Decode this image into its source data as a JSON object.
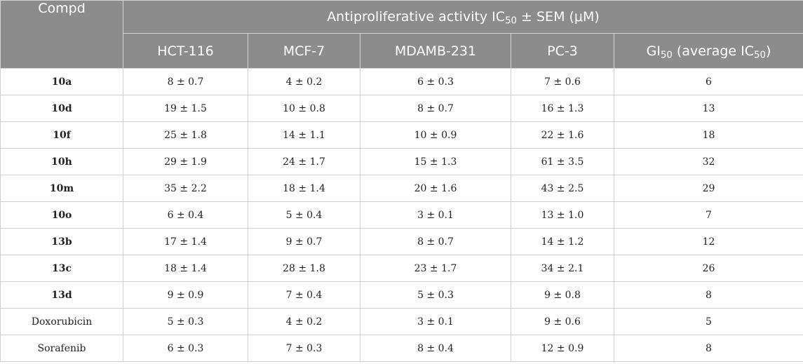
{
  "header": {
    "compd_label": "Compd",
    "activity_prefix": "Antiproliferative activity IC",
    "activity_sub": "50",
    "activity_suffix": " ± SEM (μM)",
    "columns": [
      "HCT-116",
      "MCF-7",
      "MDAMB-231",
      "PC-3"
    ],
    "gi_prefix": "GI",
    "gi_sub": "50",
    "gi_middle": " (average IC",
    "gi_sub2": "50",
    "gi_suffix": ")"
  },
  "rows": [
    {
      "compd": "10a",
      "bold": true,
      "hct": "8 ± 0.7",
      "mcf": "4 ± 0.2",
      "mdamb": "6 ± 0.3",
      "pc3": "7 ± 0.6",
      "gi": "6"
    },
    {
      "compd": "10d",
      "bold": true,
      "hct": "19 ± 1.5",
      "mcf": "10 ± 0.8",
      "mdamb": "8 ± 0.7",
      "pc3": "16 ± 1.3",
      "gi": "13"
    },
    {
      "compd": "10f",
      "bold": true,
      "hct": "25 ± 1.8",
      "mcf": "14 ± 1.1",
      "mdamb": "10 ± 0.9",
      "pc3": "22 ± 1.6",
      "gi": "18"
    },
    {
      "compd": "10h",
      "bold": true,
      "hct": "29 ± 1.9",
      "mcf": "24 ± 1.7",
      "mdamb": "15 ± 1.3",
      "pc3": "61 ± 3.5",
      "gi": "32"
    },
    {
      "compd": "10m",
      "bold": true,
      "hct": "35 ± 2.2",
      "mcf": "18 ± 1.4",
      "mdamb": "20 ± 1.6",
      "pc3": "43 ± 2.5",
      "gi": "29"
    },
    {
      "compd": "10o",
      "bold": true,
      "hct": "6 ± 0.4",
      "mcf": "5 ± 0.4",
      "mdamb": "3 ± 0.1",
      "pc3": "13 ± 1.0",
      "gi": "7"
    },
    {
      "compd": "13b",
      "bold": true,
      "hct": "17 ± 1.4",
      "mcf": "9 ± 0.7",
      "mdamb": "8 ± 0.7",
      "pc3": "14 ± 1.2",
      "gi": "12"
    },
    {
      "compd": "13c",
      "bold": true,
      "hct": "18 ± 1.4",
      "mcf": "28 ± 1.8",
      "mdamb": "23 ± 1.7",
      "pc3": "34 ± 2.1",
      "gi": "26"
    },
    {
      "compd": "13d",
      "bold": true,
      "hct": "9 ± 0.9",
      "mcf": "7 ± 0.4",
      "mdamb": "5 ± 0.3",
      "pc3": "9 ± 0.8",
      "gi": "8"
    },
    {
      "compd": "Doxorubicin",
      "bold": false,
      "hct": "5 ± 0.3",
      "mcf": "4 ± 0.2",
      "mdamb": "3 ± 0.1",
      "pc3": "9 ± 0.6",
      "gi": "5"
    },
    {
      "compd": "Sorafenib",
      "bold": false,
      "hct": "6 ± 0.3",
      "mcf": "7 ± 0.3",
      "mdamb": "8 ± 0.4",
      "pc3": "12 ± 0.9",
      "gi": "8"
    }
  ],
  "colors": {
    "header_background": "#8c8c8c",
    "header_text": "#ffffff",
    "cell_border": "#d0d0d0"
  }
}
